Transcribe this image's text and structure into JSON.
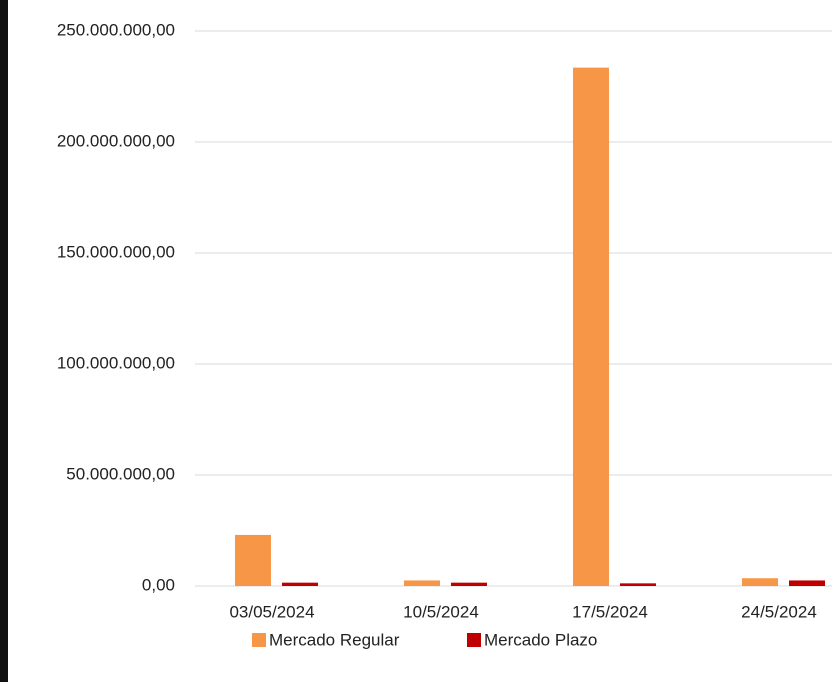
{
  "chart_data": {
    "type": "bar",
    "categories": [
      "03/05/2024",
      "10/5/2024",
      "17/5/2024",
      "24/5/2024"
    ],
    "series": [
      {
        "name": "Mercado Regular",
        "color": "#f79646",
        "values": [
          23000000,
          2500000,
          233500000,
          3500000
        ]
      },
      {
        "name": "Mercado Plazo",
        "color": "#c00000",
        "values": [
          1500000,
          1500000,
          1200000,
          2500000
        ]
      }
    ],
    "ylim": [
      0,
      250000000
    ],
    "yticks": [
      {
        "value": 0,
        "label": "0,00"
      },
      {
        "value": 50000000,
        "label": "50.000.000,00"
      },
      {
        "value": 100000000,
        "label": "100.000.000,00"
      },
      {
        "value": 150000000,
        "label": "150.000.000,00"
      },
      {
        "value": 200000000,
        "label": "200.000.000,00"
      },
      {
        "value": 250000000,
        "label": "250.000.000,00"
      }
    ],
    "grid": true,
    "legend": "bottom"
  }
}
